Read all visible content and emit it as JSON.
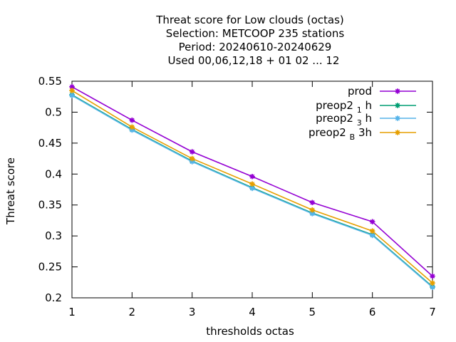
{
  "chart_data": {
    "type": "line",
    "title_lines": [
      "Threat score  for Low clouds (octas)",
      "Selection: METCOOP    235 stations",
      "Period: 20240610-20240629",
      "Used  00,06,12,18 + 01 02 ... 12"
    ],
    "xlabel": "thresholds octas",
    "ylabel": "Threat score",
    "x": [
      1,
      2,
      3,
      4,
      5,
      6,
      7
    ],
    "xlim": [
      1,
      7
    ],
    "ylim": [
      0.2,
      0.55
    ],
    "x_ticks": [
      "1",
      "2",
      "3",
      "4",
      "5",
      "6",
      "7"
    ],
    "y_ticks": [
      {
        "value": 0.2,
        "label": "0.2"
      },
      {
        "value": 0.25,
        "label": "0.25"
      },
      {
        "value": 0.3,
        "label": "0.3"
      },
      {
        "value": 0.35,
        "label": "0.35"
      },
      {
        "value": 0.4,
        "label": "0.4"
      },
      {
        "value": 0.45,
        "label": "0.45"
      },
      {
        "value": 0.5,
        "label": "0.5"
      },
      {
        "value": 0.55,
        "label": "0.55"
      }
    ],
    "grid": false,
    "legend_position": "top-right",
    "series": [
      {
        "name": "prod",
        "legend": {
          "base": "prod",
          "sub": "",
          "suffix": ""
        },
        "color": "#9400d3",
        "values": [
          0.541,
          0.487,
          0.436,
          0.396,
          0.354,
          0.323,
          0.235
        ]
      },
      {
        "name": "preop2 1 h",
        "legend": {
          "base": "preop2 ",
          "sub": "1",
          "suffix": " h"
        },
        "color": "#009e73",
        "values": [
          0.528,
          0.472,
          0.421,
          0.378,
          0.337,
          0.302,
          0.218
        ]
      },
      {
        "name": "preop2 3 h",
        "legend": {
          "base": "preop2 ",
          "sub": "3",
          "suffix": " h"
        },
        "color": "#56b4e9",
        "values": [
          0.527,
          0.471,
          0.42,
          0.377,
          0.336,
          0.301,
          0.217
        ]
      },
      {
        "name": "preop2 B 3h",
        "legend": {
          "base": "preop2 ",
          "sub": "B",
          "suffix": " 3h"
        },
        "color": "#e69f00",
        "values": [
          0.535,
          0.476,
          0.425,
          0.384,
          0.342,
          0.308,
          0.224
        ]
      }
    ]
  }
}
